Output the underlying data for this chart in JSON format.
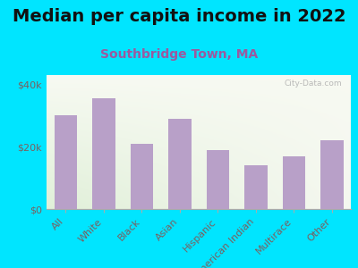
{
  "title": "Median per capita income in 2022",
  "subtitle": "Southbridge Town, MA",
  "categories": [
    "All",
    "White",
    "Black",
    "Asian",
    "Hispanic",
    "American Indian",
    "Multirace",
    "Other"
  ],
  "values": [
    30000,
    35500,
    21000,
    29000,
    19000,
    14000,
    17000,
    22000
  ],
  "bar_color": "#b8a0c8",
  "background_outer": "#00e5ff",
  "title_color": "#111111",
  "subtitle_color": "#9b59a0",
  "axis_label_color": "#7a6060",
  "ytick_labels": [
    "$0",
    "$20k",
    "$40k"
  ],
  "ytick_values": [
    0,
    20000,
    40000
  ],
  "ylim": [
    0,
    43000
  ],
  "watermark": "City-Data.com",
  "title_fontsize": 14,
  "subtitle_fontsize": 10,
  "tick_fontsize": 8
}
